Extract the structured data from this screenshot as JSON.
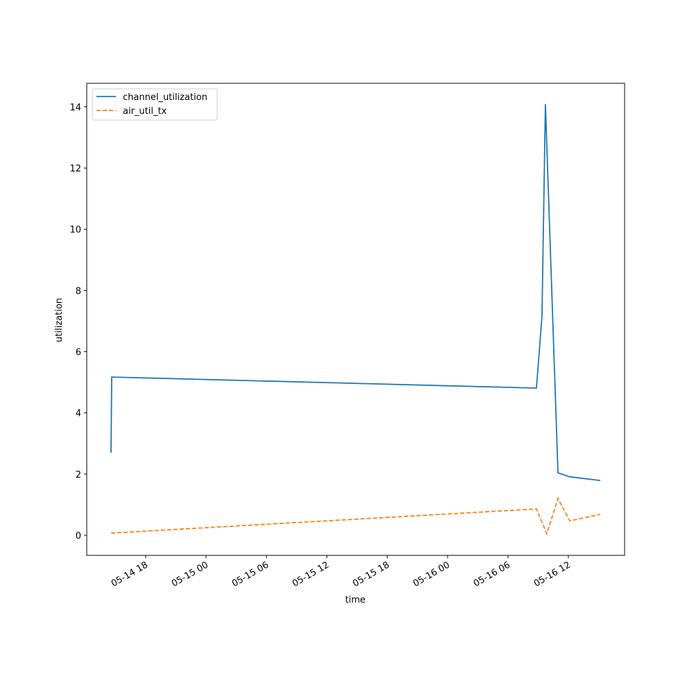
{
  "chart_data": {
    "type": "line",
    "x_label": "time",
    "y_label": "utilization",
    "xlim": [
      12.14,
      65.59
    ],
    "ylim": [
      -0.658,
      14.77
    ],
    "xticks": [
      {
        "value": 18,
        "label": "05-14 18"
      },
      {
        "value": 24,
        "label": "05-15 00"
      },
      {
        "value": 30,
        "label": "05-15 06"
      },
      {
        "value": 36,
        "label": "05-15 12"
      },
      {
        "value": 42,
        "label": "05-15 18"
      },
      {
        "value": 48,
        "label": "05-16 00"
      },
      {
        "value": 54,
        "label": "05-16 06"
      },
      {
        "value": 60,
        "label": "05-16 12"
      }
    ],
    "yticks": [
      0,
      2,
      4,
      6,
      8,
      10,
      12,
      14
    ],
    "legend": "upper left",
    "series": [
      {
        "name": "channel_utilization",
        "color": "#1f77b4",
        "dash": "solid",
        "x": [
          14.55,
          14.62,
          56.83,
          57.38,
          57.72,
          58.97,
          60.14,
          63.17
        ],
        "values": [
          2.7,
          5.17,
          4.81,
          7.17,
          14.09,
          2.04,
          1.91,
          1.79
        ]
      },
      {
        "name": "air_util_tx",
        "color": "#ff7f0e",
        "dash": "dashed",
        "x": [
          14.55,
          56.83,
          57.86,
          58.97,
          60.14,
          63.17
        ],
        "values": [
          0.07,
          0.86,
          0.05,
          1.2,
          0.47,
          0.68
        ]
      }
    ]
  }
}
